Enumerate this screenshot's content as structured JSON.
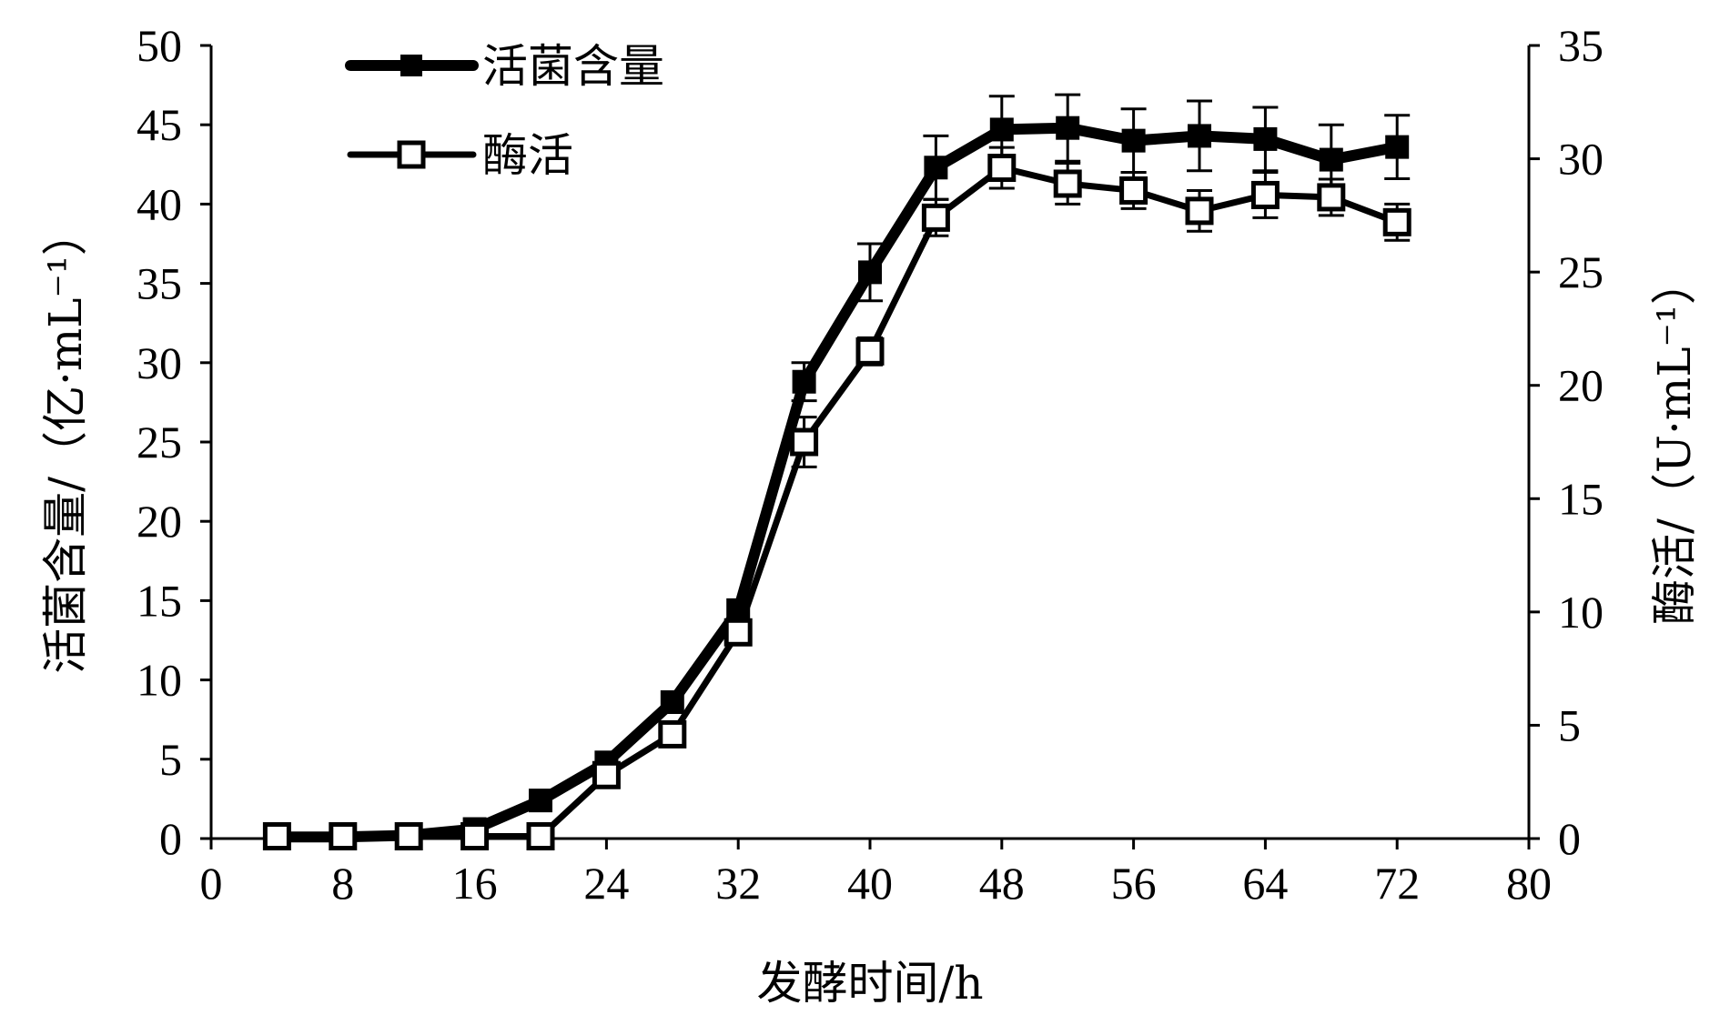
{
  "chart_data": {
    "type": "line",
    "x_axis": {
      "label": "发酵时间/h",
      "min": 0,
      "max": 80,
      "ticks": [
        0,
        8,
        16,
        24,
        32,
        40,
        48,
        56,
        64,
        72,
        80
      ]
    },
    "y_left": {
      "label": "活菌含量/（亿·mL⁻¹）",
      "min": 0,
      "max": 50,
      "ticks": [
        0,
        5,
        10,
        15,
        20,
        25,
        30,
        35,
        40,
        45,
        50
      ]
    },
    "y_right": {
      "label": "酶活/（U·mL⁻¹）",
      "min": 0,
      "max": 35,
      "ticks": [
        0,
        5,
        10,
        15,
        20,
        25,
        30,
        35
      ]
    },
    "legend_position": "top-left",
    "grid": false,
    "series": [
      {
        "name": "活菌含量",
        "axis": "left",
        "marker": "filled-square",
        "x": [
          4,
          8,
          12,
          16,
          20,
          24,
          28,
          32,
          36,
          40,
          44,
          48,
          52,
          56,
          60,
          64,
          68,
          72
        ],
        "y": [
          0.1,
          0.1,
          0.2,
          0.6,
          2.4,
          4.8,
          8.6,
          14.4,
          28.8,
          35.7,
          42.3,
          44.7,
          44.8,
          44.0,
          44.3,
          44.1,
          42.8,
          43.6
        ],
        "error": [
          0,
          0,
          0,
          0,
          0,
          0,
          0,
          0,
          1.2,
          1.8,
          2.0,
          2.1,
          2.1,
          2.0,
          2.2,
          2.0,
          2.2,
          2.0
        ]
      },
      {
        "name": "酶活",
        "axis": "right",
        "marker": "open-square",
        "x": [
          4,
          8,
          12,
          16,
          20,
          24,
          28,
          32,
          36,
          40,
          44,
          48,
          52,
          56,
          60,
          64,
          68,
          72
        ],
        "y": [
          0.1,
          0.1,
          0.1,
          0.1,
          0.1,
          2.8,
          4.6,
          9.1,
          17.5,
          21.5,
          27.4,
          29.6,
          28.9,
          28.6,
          27.7,
          28.4,
          28.3,
          27.2
        ],
        "error": [
          0,
          0,
          0,
          0,
          0,
          0,
          0,
          0,
          1.1,
          0.6,
          0.8,
          0.9,
          0.9,
          0.8,
          0.9,
          1.0,
          0.8,
          0.8
        ]
      }
    ]
  }
}
